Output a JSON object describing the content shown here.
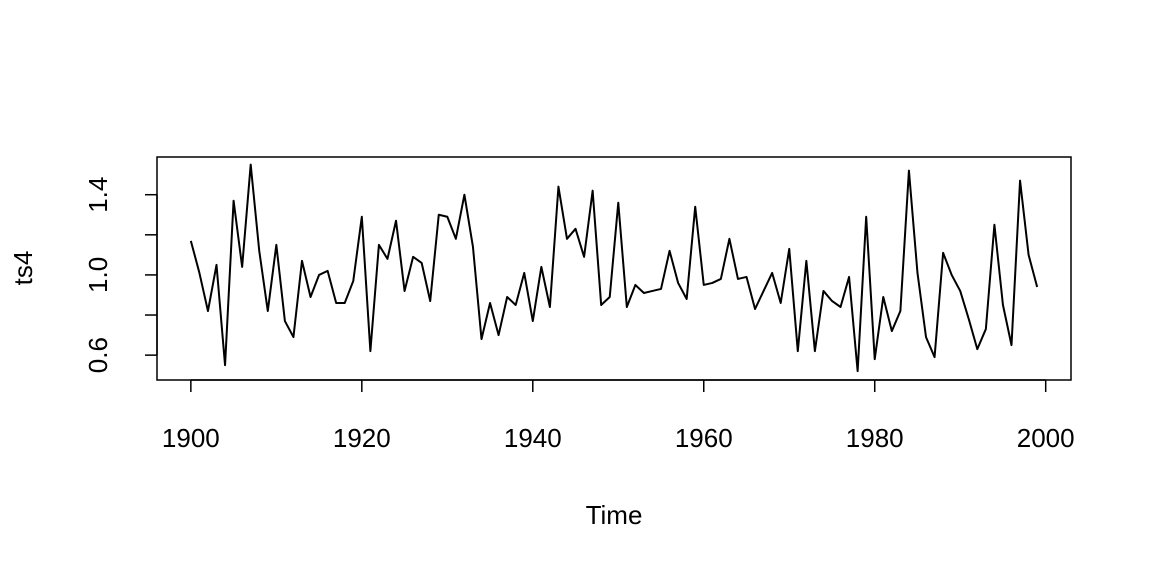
{
  "chart_data": {
    "type": "line",
    "xlabel": "Time",
    "ylabel": "ts4",
    "x": [
      1900,
      1901,
      1902,
      1903,
      1904,
      1905,
      1906,
      1907,
      1908,
      1909,
      1910,
      1911,
      1912,
      1913,
      1914,
      1915,
      1916,
      1917,
      1918,
      1919,
      1920,
      1921,
      1922,
      1923,
      1924,
      1925,
      1926,
      1927,
      1928,
      1929,
      1930,
      1931,
      1932,
      1933,
      1934,
      1935,
      1936,
      1937,
      1938,
      1939,
      1940,
      1941,
      1942,
      1943,
      1944,
      1945,
      1946,
      1947,
      1948,
      1949,
      1950,
      1951,
      1952,
      1953,
      1954,
      1955,
      1956,
      1957,
      1958,
      1959,
      1960,
      1961,
      1962,
      1963,
      1964,
      1965,
      1966,
      1967,
      1968,
      1969,
      1970,
      1971,
      1972,
      1973,
      1974,
      1975,
      1976,
      1977,
      1978,
      1979,
      1980,
      1981,
      1982,
      1983,
      1984,
      1985,
      1986,
      1987,
      1988,
      1989,
      1990,
      1991,
      1992,
      1993,
      1994,
      1995,
      1996,
      1997,
      1998,
      1999
    ],
    "values": [
      1.17,
      1.01,
      0.82,
      1.05,
      0.55,
      1.37,
      1.04,
      1.55,
      1.12,
      0.82,
      1.15,
      0.77,
      0.69,
      1.07,
      0.89,
      1.0,
      1.02,
      0.86,
      0.86,
      0.97,
      1.29,
      0.62,
      1.15,
      1.08,
      1.27,
      0.92,
      1.09,
      1.06,
      0.87,
      1.3,
      1.29,
      1.18,
      1.4,
      1.14,
      0.68,
      0.86,
      0.7,
      0.89,
      0.85,
      1.01,
      0.77,
      1.04,
      0.84,
      1.44,
      1.18,
      1.23,
      1.09,
      1.42,
      0.85,
      0.89,
      1.36,
      0.84,
      0.95,
      0.91,
      0.92,
      0.93,
      1.12,
      0.96,
      0.88,
      1.34,
      0.95,
      0.96,
      0.98,
      1.18,
      0.98,
      0.99,
      0.83,
      0.92,
      1.01,
      0.86,
      1.13,
      0.62,
      1.07,
      0.62,
      0.92,
      0.87,
      0.84,
      0.99,
      0.52,
      1.29,
      0.58,
      0.89,
      0.72,
      0.82,
      1.52,
      1.01,
      0.69,
      0.59,
      1.11,
      1.0,
      0.92,
      0.78,
      0.63,
      0.73,
      1.25,
      0.85,
      0.65,
      1.47,
      1.1,
      0.94
    ],
    "color": "#000000",
    "xlim": [
      1896.04,
      2002.96
    ],
    "ylim": [
      0.476,
      1.588
    ],
    "xticks": [
      1900,
      1920,
      1940,
      1960,
      1980,
      2000
    ],
    "yticks": [
      0.6,
      {
        "value": 1,
        "label": "1.0"
      },
      1.4
    ],
    "yticks_unlabeled": [
      0.8,
      1.2
    ],
    "grid": false
  }
}
